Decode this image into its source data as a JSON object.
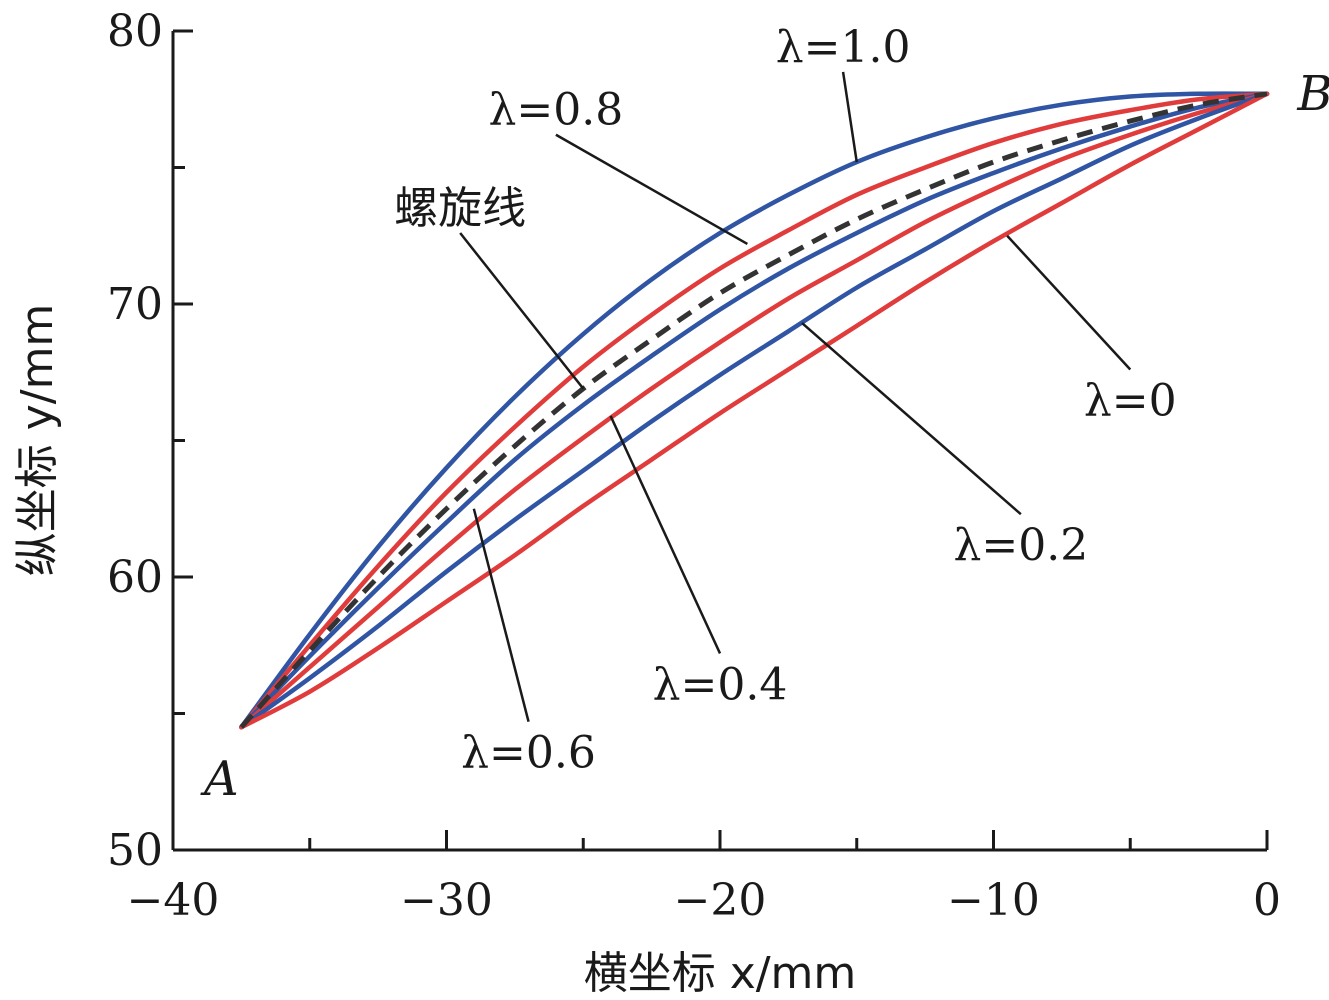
{
  "chart_data": {
    "type": "line",
    "xlabel": "横坐标 x/mm",
    "ylabel": "纵坐标 y/mm",
    "xlim": [
      -40,
      0
    ],
    "ylim": [
      50,
      80
    ],
    "x_ticks": [
      -40,
      -30,
      -20,
      -10,
      0
    ],
    "x_tick_labels": [
      "−40",
      "−30",
      "−20",
      "−10",
      "0"
    ],
    "y_ticks": [
      50,
      60,
      70,
      80
    ],
    "y_tick_labels": [
      "50",
      "60",
      "70",
      "80"
    ],
    "grid": false,
    "legend": "none",
    "start_point": {
      "label": "A",
      "x": -37.5,
      "y": 54.5
    },
    "end_point": {
      "label": "B",
      "x": 0,
      "y": 77.7
    },
    "series": [
      {
        "name": "λ=1.0",
        "color": "#2f55a4",
        "style": "solid",
        "x": [
          -37.5,
          -35,
          -32.5,
          -30,
          -27.5,
          -25,
          -22.5,
          -20,
          -17.5,
          -15,
          -12.5,
          -10,
          -7.5,
          -5,
          -2.5,
          0
        ],
        "y": [
          54.5,
          57.9,
          61.1,
          64.0,
          66.6,
          68.9,
          70.9,
          72.6,
          74.0,
          75.2,
          76.1,
          76.8,
          77.3,
          77.6,
          77.7,
          77.7
        ]
      },
      {
        "name": "λ=0.8",
        "color": "#e03c3c",
        "style": "solid",
        "x": [
          -37.5,
          -35,
          -32.5,
          -30,
          -27.5,
          -25,
          -22.5,
          -20,
          -17.5,
          -15,
          -12.5,
          -10,
          -7.5,
          -5,
          -2.5,
          0
        ],
        "y": [
          54.5,
          57.5,
          60.4,
          63.1,
          65.5,
          67.7,
          69.6,
          71.3,
          72.7,
          74.0,
          75.0,
          75.9,
          76.6,
          77.1,
          77.5,
          77.7
        ]
      },
      {
        "name": "螺旋线",
        "color": "#333333",
        "style": "dashed",
        "x": [
          -37.5,
          -35,
          -32.5,
          -30,
          -27.5,
          -25,
          -22.5,
          -20,
          -17.5,
          -15,
          -12.5,
          -10,
          -7.5,
          -5,
          -2.5,
          0
        ],
        "y": [
          54.5,
          57.3,
          60.0,
          62.5,
          64.8,
          66.9,
          68.7,
          70.4,
          71.8,
          73.1,
          74.2,
          75.2,
          76.0,
          76.7,
          77.3,
          77.7
        ]
      },
      {
        "name": "λ=0.6",
        "color": "#2f55a4",
        "style": "solid",
        "x": [
          -37.5,
          -35,
          -32.5,
          -30,
          -27.5,
          -25,
          -22.5,
          -20,
          -17.5,
          -15,
          -12.5,
          -10,
          -7.5,
          -5,
          -2.5,
          0
        ],
        "y": [
          54.5,
          57.1,
          59.6,
          62.0,
          64.3,
          66.3,
          68.1,
          69.8,
          71.3,
          72.6,
          73.8,
          74.8,
          75.7,
          76.5,
          77.2,
          77.7
        ]
      },
      {
        "name": "λ=0.4",
        "color": "#e03c3c",
        "style": "solid",
        "x": [
          -37.5,
          -35,
          -32.5,
          -30,
          -27.5,
          -25,
          -22.5,
          -20,
          -17.5,
          -15,
          -12.5,
          -10,
          -7.5,
          -5,
          -2.5,
          0
        ],
        "y": [
          54.5,
          56.7,
          58.9,
          61.1,
          63.2,
          65.1,
          66.9,
          68.6,
          70.2,
          71.6,
          73.0,
          74.2,
          75.3,
          76.2,
          77.0,
          77.7
        ]
      },
      {
        "name": "λ=0.2",
        "color": "#2f55a4",
        "style": "solid",
        "x": [
          -37.5,
          -35,
          -32.5,
          -30,
          -27.5,
          -25,
          -22.5,
          -20,
          -17.5,
          -15,
          -12.5,
          -10,
          -7.5,
          -5,
          -2.5,
          0
        ],
        "y": [
          54.5,
          56.3,
          58.2,
          60.2,
          62.1,
          63.9,
          65.7,
          67.4,
          69.0,
          70.6,
          72.0,
          73.4,
          74.6,
          75.8,
          76.8,
          77.7
        ]
      },
      {
        "name": "λ=0",
        "color": "#e03c3c",
        "style": "solid",
        "x": [
          -37.5,
          -35,
          -32.5,
          -30,
          -27.5,
          -25,
          -22.5,
          -20,
          -17.5,
          -15,
          -12.5,
          -10,
          -7.5,
          -5,
          -2.5,
          0
        ],
        "y": [
          54.5,
          55.8,
          57.4,
          59.1,
          60.8,
          62.6,
          64.3,
          66.0,
          67.6,
          69.2,
          70.8,
          72.3,
          73.7,
          75.1,
          76.4,
          77.7
        ]
      }
    ],
    "annotations": [
      {
        "text": "λ=1.0",
        "series": "λ=1.0",
        "target": [
          -15.0,
          75.2
        ],
        "text_pos": [
          -15.5,
          78.5
        ]
      },
      {
        "text": "λ=0.8",
        "series": "λ=0.8",
        "target": [
          -19.0,
          72.2
        ],
        "text_pos": [
          -26.0,
          76.2
        ]
      },
      {
        "text": "螺旋线",
        "series": "螺旋线",
        "target": [
          -25.0,
          66.9
        ],
        "text_pos": [
          -29.5,
          72.6
        ]
      },
      {
        "text": "λ=0.6",
        "series": "λ=0.6",
        "target": [
          -29.0,
          62.5
        ],
        "text_pos": [
          -27.0,
          54.7
        ]
      },
      {
        "text": "λ=0.4",
        "series": "λ=0.4",
        "target": [
          -24.0,
          65.9
        ],
        "text_pos": [
          -20.0,
          57.2
        ]
      },
      {
        "text": "λ=0.2",
        "series": "λ=0.2",
        "target": [
          -17.0,
          69.3
        ],
        "text_pos": [
          -9.0,
          62.3
        ]
      },
      {
        "text": "λ=0",
        "series": "λ=0",
        "target": [
          -9.5,
          72.5
        ],
        "text_pos": [
          -5.0,
          67.6
        ]
      }
    ]
  }
}
